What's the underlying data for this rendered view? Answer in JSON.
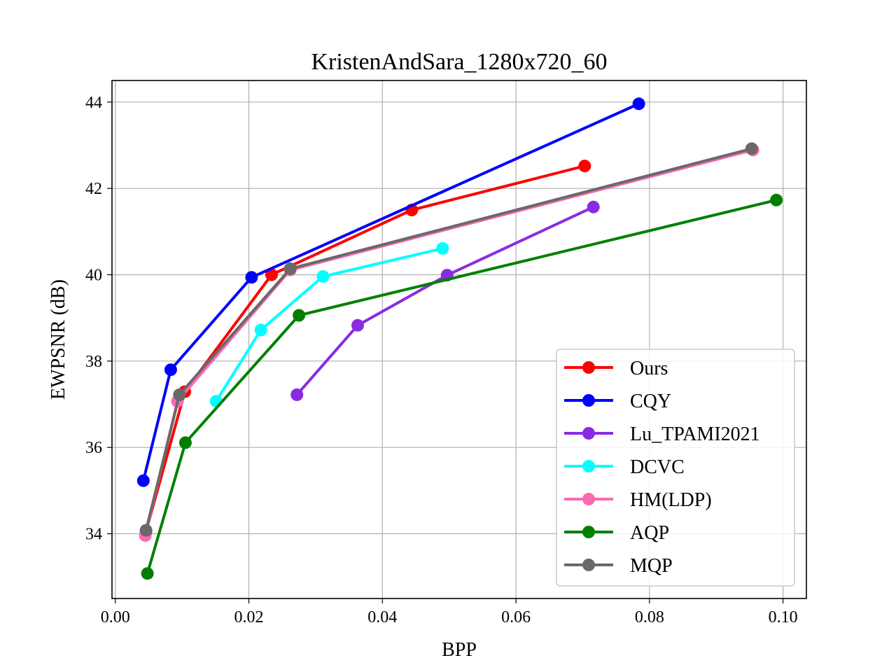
{
  "chart_data": {
    "type": "line",
    "title": "KristenAndSara_1280x720_60",
    "xlabel": "BPP",
    "ylabel": "EWPSNR (dB)",
    "xlim": [
      -0.0005,
      0.1035
    ],
    "ylim": [
      32.5,
      44.5
    ],
    "xticks": [
      0.0,
      0.02,
      0.04,
      0.06,
      0.08,
      0.1
    ],
    "xtick_labels": [
      "0.00",
      "0.02",
      "0.04",
      "0.06",
      "0.08",
      "0.10"
    ],
    "yticks": [
      34,
      36,
      38,
      40,
      42,
      44
    ],
    "ytick_labels": [
      "34",
      "36",
      "38",
      "40",
      "42",
      "44"
    ],
    "grid": true,
    "legend_position": "bottom-right",
    "series": [
      {
        "name": "Ours",
        "color": "#ff0000",
        "x": [
          0.0046,
          0.0104,
          0.0234,
          0.0444,
          0.0703
        ],
        "y": [
          34.05,
          37.29,
          40.0,
          41.5,
          42.52
        ]
      },
      {
        "name": "CQY",
        "color": "#0000ff",
        "x": [
          0.0042,
          0.0083,
          0.0204,
          0.0784
        ],
        "y": [
          35.23,
          37.8,
          39.94,
          43.96
        ]
      },
      {
        "name": "Lu_TPAMI2021",
        "color": "#8a2be2",
        "x": [
          0.0272,
          0.0363,
          0.0497,
          0.0716
        ],
        "y": [
          37.22,
          38.83,
          39.99,
          41.57
        ]
      },
      {
        "name": "DCVC",
        "color": "#00ffff",
        "x": [
          0.0151,
          0.0218,
          0.0311,
          0.049
        ],
        "y": [
          37.07,
          38.72,
          39.96,
          40.61
        ]
      },
      {
        "name": "HM(LDP)",
        "color": "#ff69b4",
        "x": [
          0.0045,
          0.0093,
          0.0262,
          0.0955
        ],
        "y": [
          33.96,
          37.07,
          40.11,
          42.89
        ]
      },
      {
        "name": "AQP",
        "color": "#008000",
        "x": [
          0.0048,
          0.0105,
          0.0275,
          0.099
        ],
        "y": [
          33.08,
          36.11,
          39.06,
          41.73
        ]
      },
      {
        "name": "MQP",
        "color": "#696969",
        "x": [
          0.0046,
          0.0096,
          0.0262,
          0.0953
        ],
        "y": [
          34.08,
          37.22,
          40.14,
          42.92
        ]
      }
    ]
  }
}
